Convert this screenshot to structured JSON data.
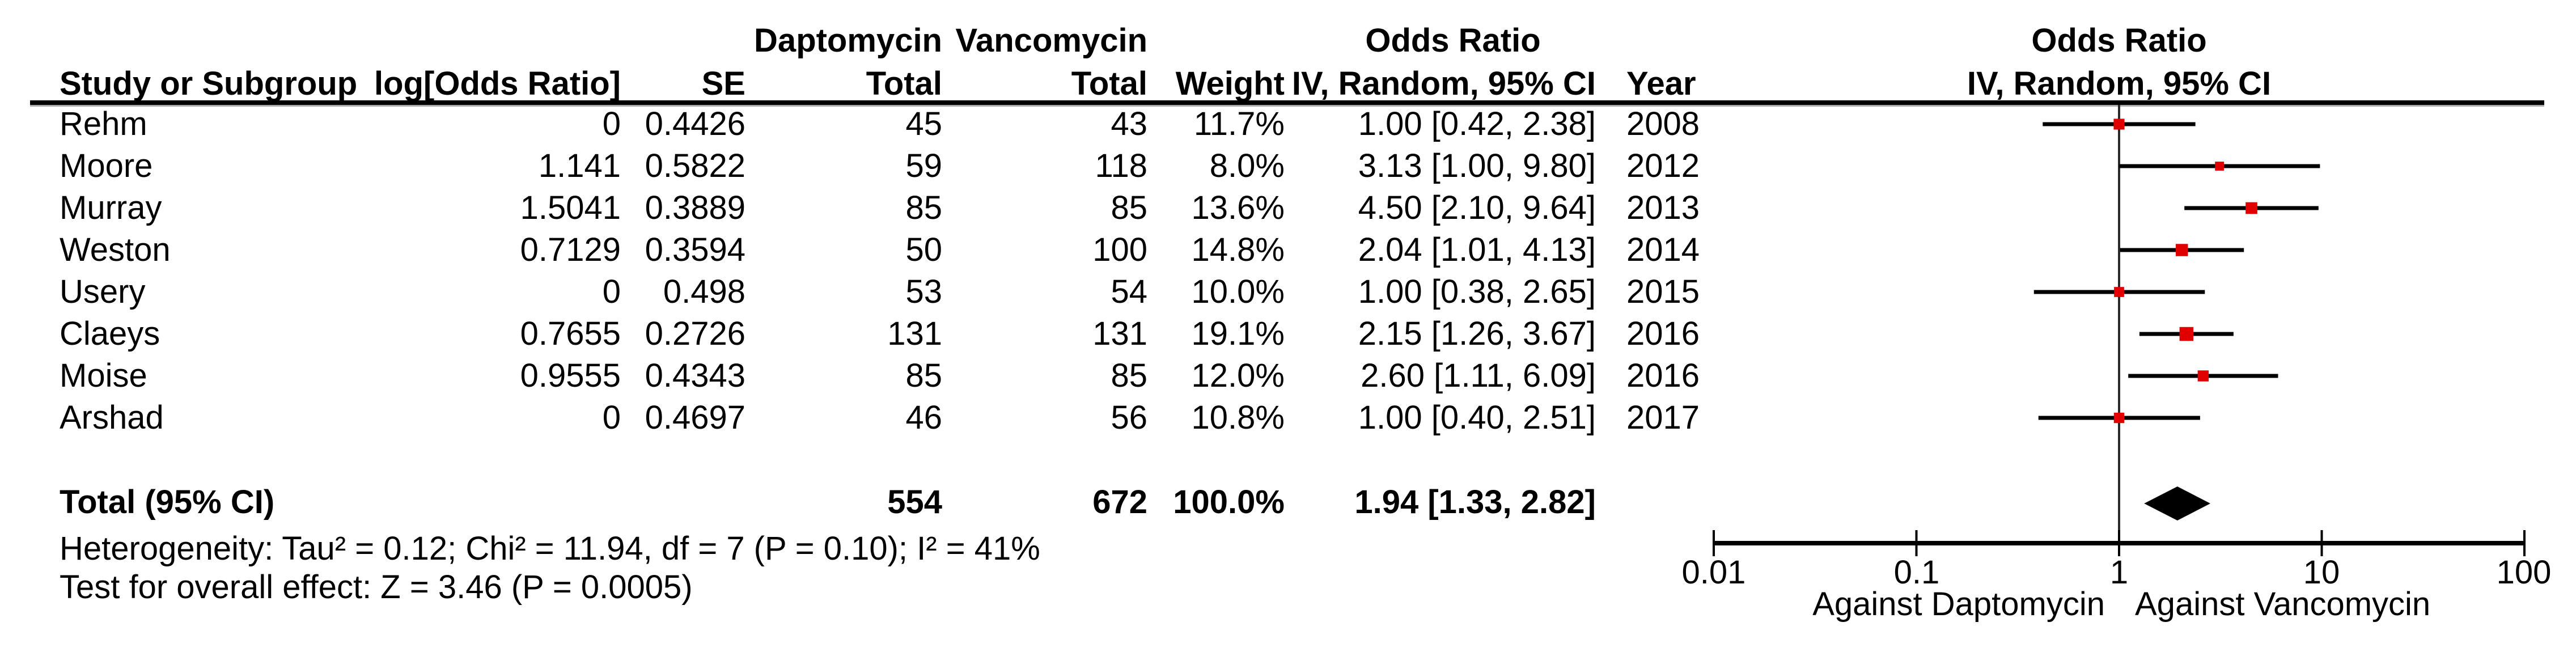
{
  "colors": {
    "marker": "#e00000",
    "ci_line": "#000000",
    "diamond": "#000000",
    "null_line": "#2b2b2b",
    "rule": "#000000",
    "rule_shadow": "#a8a8a8"
  },
  "table": {
    "group_headers": {
      "daptomycin": "Daptomycin",
      "vancomycin": "Vancomycin",
      "odds_ratio": "Odds Ratio",
      "odds_ratio_plot": "Odds Ratio"
    },
    "column_headers": {
      "study": "Study or Subgroup",
      "log_or": "log[Odds Ratio]",
      "se": "SE",
      "total_daptomycin": "Total",
      "total_vancomycin": "Total",
      "weight": "Weight",
      "method_ci": "IV, Random, 95% CI",
      "year": "Year",
      "method_ci_plot": "IV, Random, 95% CI"
    },
    "rows": [
      {
        "study": "Rehm",
        "log_or": "0",
        "se": "0.4426",
        "d_total": "45",
        "v_total": "43",
        "weight": "11.7%",
        "or_ci": "1.00 [0.42, 2.38]",
        "year": "2008"
      },
      {
        "study": "Moore",
        "log_or": "1.141",
        "se": "0.5822",
        "d_total": "59",
        "v_total": "118",
        "weight": "8.0%",
        "or_ci": "3.13 [1.00, 9.80]",
        "year": "2012"
      },
      {
        "study": "Murray",
        "log_or": "1.5041",
        "se": "0.3889",
        "d_total": "85",
        "v_total": "85",
        "weight": "13.6%",
        "or_ci": "4.50 [2.10, 9.64]",
        "year": "2013"
      },
      {
        "study": "Weston",
        "log_or": "0.7129",
        "se": "0.3594",
        "d_total": "50",
        "v_total": "100",
        "weight": "14.8%",
        "or_ci": "2.04 [1.01, 4.13]",
        "year": "2014"
      },
      {
        "study": "Usery",
        "log_or": "0",
        "se": "0.498",
        "d_total": "53",
        "v_total": "54",
        "weight": "10.0%",
        "or_ci": "1.00 [0.38, 2.65]",
        "year": "2015"
      },
      {
        "study": "Claeys",
        "log_or": "0.7655",
        "se": "0.2726",
        "d_total": "131",
        "v_total": "131",
        "weight": "19.1%",
        "or_ci": "2.15 [1.26, 3.67]",
        "year": "2016"
      },
      {
        "study": "Moise",
        "log_or": "0.9555",
        "se": "0.4343",
        "d_total": "85",
        "v_total": "85",
        "weight": "12.0%",
        "or_ci": "2.60 [1.11, 6.09]",
        "year": "2016"
      },
      {
        "study": "Arshad",
        "log_or": "0",
        "se": "0.4697",
        "d_total": "46",
        "v_total": "56",
        "weight": "10.8%",
        "or_ci": "1.00 [0.40, 2.51]",
        "year": "2017"
      }
    ],
    "total_row": {
      "label": "Total (95% CI)",
      "d_total": "554",
      "v_total": "672",
      "weight": "100.0%",
      "or_ci": "1.94 [1.33, 2.82]"
    }
  },
  "footer": {
    "heterogeneity": "Heterogeneity: Tau² = 0.12; Chi² = 11.94, df = 7 (P = 0.10); I² = 41%",
    "overall_effect": "Test for overall effect: Z = 3.46 (P = 0.0005)"
  },
  "axis": {
    "tick_labels": [
      "0.01",
      "0.1",
      "1",
      "10",
      "100"
    ],
    "left_label": "Against Daptomycin",
    "right_label": "Against Vancomycin"
  },
  "chart_data": {
    "type": "scatter",
    "variant": "forest-plot",
    "title": "Odds Ratio",
    "subtitle": "IV, Random, 95% CI",
    "x_scale": "log10",
    "xlim": [
      0.01,
      100
    ],
    "x_ticks": [
      0.01,
      0.1,
      1,
      10,
      100
    ],
    "null_line": 1,
    "direction_labels": {
      "left": "Against Daptomycin",
      "right": "Against Vancomycin"
    },
    "studies": [
      {
        "study": "Rehm",
        "year": 2008,
        "or": 1.0,
        "ci_low": 0.42,
        "ci_high": 2.38,
        "weight_pct": 11.7
      },
      {
        "study": "Moore",
        "year": 2012,
        "or": 3.13,
        "ci_low": 1.0,
        "ci_high": 9.8,
        "weight_pct": 8.0
      },
      {
        "study": "Murray",
        "year": 2013,
        "or": 4.5,
        "ci_low": 2.1,
        "ci_high": 9.64,
        "weight_pct": 13.6
      },
      {
        "study": "Weston",
        "year": 2014,
        "or": 2.04,
        "ci_low": 1.01,
        "ci_high": 4.13,
        "weight_pct": 14.8
      },
      {
        "study": "Usery",
        "year": 2015,
        "or": 1.0,
        "ci_low": 0.38,
        "ci_high": 2.65,
        "weight_pct": 10.0
      },
      {
        "study": "Claeys",
        "year": 2016,
        "or": 2.15,
        "ci_low": 1.26,
        "ci_high": 3.67,
        "weight_pct": 19.1
      },
      {
        "study": "Moise",
        "year": 2016,
        "or": 2.6,
        "ci_low": 1.11,
        "ci_high": 6.09,
        "weight_pct": 12.0
      },
      {
        "study": "Arshad",
        "year": 2017,
        "or": 1.0,
        "ci_low": 0.4,
        "ci_high": 2.51,
        "weight_pct": 10.8
      }
    ],
    "total": {
      "label": "Total (95% CI)",
      "or": 1.94,
      "ci_low": 1.33,
      "ci_high": 2.82,
      "weight_pct": 100.0
    }
  }
}
